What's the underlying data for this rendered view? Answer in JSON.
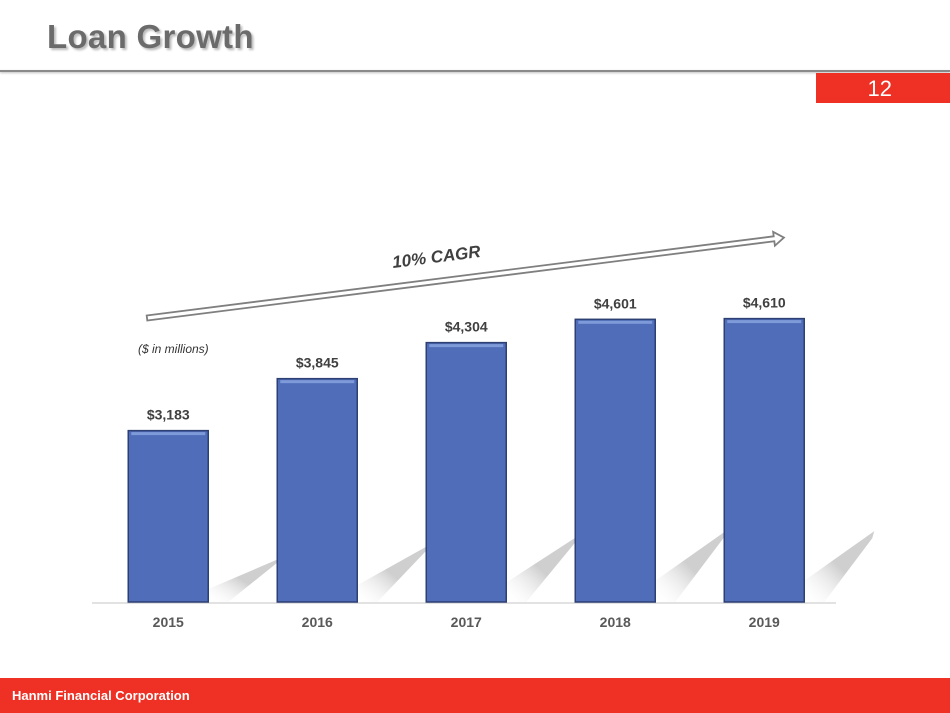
{
  "header": {
    "title": "Loan Growth",
    "page_number": "12"
  },
  "footer": {
    "company": "Hanmi Financial Corporation"
  },
  "colors": {
    "bar": "#4f6db8",
    "accent": "#ee3124",
    "title": "#6b6b6b"
  },
  "chart_data": {
    "type": "bar",
    "title": "Loan Growth",
    "units_note": "($ in millions)",
    "annotation": "10% CAGR",
    "categories": [
      "2015",
      "2016",
      "2017",
      "2018",
      "2019"
    ],
    "values": [
      3183,
      3845,
      4304,
      4601,
      4610
    ],
    "data_labels": [
      "$3,183",
      "$3,845",
      "$4,304",
      "$4,601",
      "$4,610"
    ],
    "xlabel": "",
    "ylabel": "",
    "ylim": [
      1000,
      5000
    ],
    "grid": false,
    "legend": "none"
  }
}
